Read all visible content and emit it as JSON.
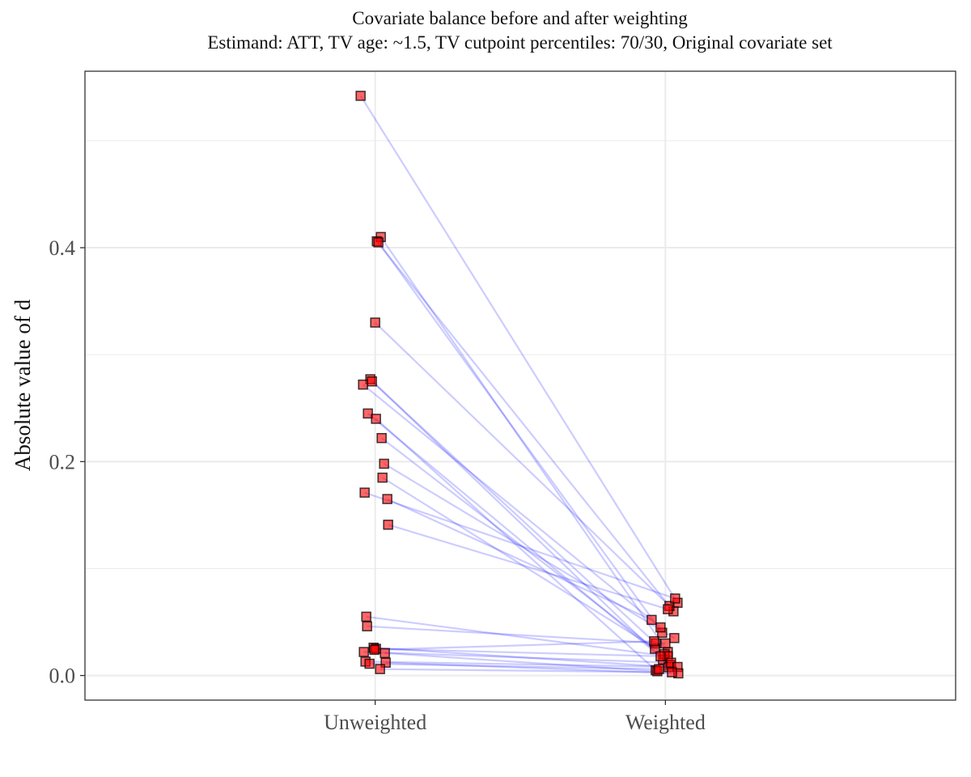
{
  "chart_data": {
    "type": "scatter",
    "title": "Covariate balance before and after weighting",
    "subtitle": "Estimand: ATT, TV age: ~1.5, TV cutpoint percentiles: 70/30, Original covariate set",
    "xlabel": "",
    "ylabel": "Absolute value of d",
    "categories": [
      "Unweighted",
      "Weighted"
    ],
    "ylim": [
      -0.023,
      0.565
    ],
    "yticks": [
      0.0,
      0.2,
      0.4
    ],
    "ytick_labels": [
      "0.0",
      "0.2",
      "0.4"
    ],
    "grid": true,
    "colors": {
      "point_fill": "#ff0000",
      "point_edge": "#000000",
      "line": "#0000ff",
      "panel_border": "#333333",
      "grid": "#ebebeb"
    },
    "pairs": [
      {
        "unweighted": 0.542,
        "weighted": 0.068
      },
      {
        "unweighted": 0.41,
        "weighted": 0.022
      },
      {
        "unweighted": 0.406,
        "weighted": 0.06
      },
      {
        "unweighted": 0.405,
        "weighted": 0.04
      },
      {
        "unweighted": 0.33,
        "weighted": 0.065
      },
      {
        "unweighted": 0.277,
        "weighted": 0.015
      },
      {
        "unweighted": 0.275,
        "weighted": 0.03
      },
      {
        "unweighted": 0.272,
        "weighted": 0.045
      },
      {
        "unweighted": 0.245,
        "weighted": 0.01
      },
      {
        "unweighted": 0.24,
        "weighted": 0.005
      },
      {
        "unweighted": 0.222,
        "weighted": 0.025
      },
      {
        "unweighted": 0.198,
        "weighted": 0.035
      },
      {
        "unweighted": 0.185,
        "weighted": 0.02
      },
      {
        "unweighted": 0.171,
        "weighted": 0.072
      },
      {
        "unweighted": 0.165,
        "weighted": 0.052
      },
      {
        "unweighted": 0.141,
        "weighted": 0.062
      },
      {
        "unweighted": 0.055,
        "weighted": 0.018
      },
      {
        "unweighted": 0.046,
        "weighted": 0.03
      },
      {
        "unweighted": 0.026,
        "weighted": 0.008
      },
      {
        "unweighted": 0.025,
        "weighted": 0.018
      },
      {
        "unweighted": 0.024,
        "weighted": 0.032
      },
      {
        "unweighted": 0.022,
        "weighted": 0.012
      },
      {
        "unweighted": 0.021,
        "weighted": 0.004
      },
      {
        "unweighted": 0.013,
        "weighted": 0.008
      },
      {
        "unweighted": 0.012,
        "weighted": 0.002
      },
      {
        "unweighted": 0.011,
        "weighted": 0.006
      },
      {
        "unweighted": 0.006,
        "weighted": 0.003
      }
    ]
  }
}
